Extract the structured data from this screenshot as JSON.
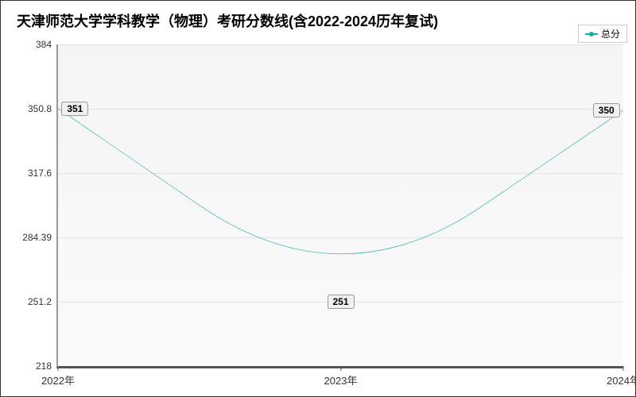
{
  "chart": {
    "type": "line",
    "title": "天津师范大学学科教学（物理）考研分数线(含2022-2024历年复试)",
    "title_fontsize": 18,
    "background_color": "#ffffff",
    "plot_background": "#f7f7f7",
    "border_color": "#333333",
    "axis_color": "#555555",
    "grid_color": "rgba(0,0,0,0.08)",
    "line_color": "#1aab9e",
    "line_width": 2,
    "marker_style": "circle",
    "marker_size": 6,
    "smooth": true,
    "legend": {
      "label": "总分",
      "position": "top-right",
      "border_color": "#cccccc"
    },
    "x": {
      "categories": [
        "2022年",
        "2023年",
        "2024年"
      ],
      "label_fontsize": 13
    },
    "y": {
      "min": 218,
      "max": 384,
      "ticks": [
        218,
        251.2,
        284.39,
        317.6,
        350.8,
        384
      ],
      "tick_labels": [
        "218",
        "251.2",
        "284.39",
        "317.6",
        "350.8",
        "384"
      ],
      "label_fontsize": 12
    },
    "series": [
      {
        "name": "总分",
        "values": [
          351,
          251,
          350
        ],
        "labels": [
          "351",
          "251",
          "350"
        ],
        "label_bg": "#f0f0f0",
        "label_border": "#999999"
      }
    ]
  }
}
